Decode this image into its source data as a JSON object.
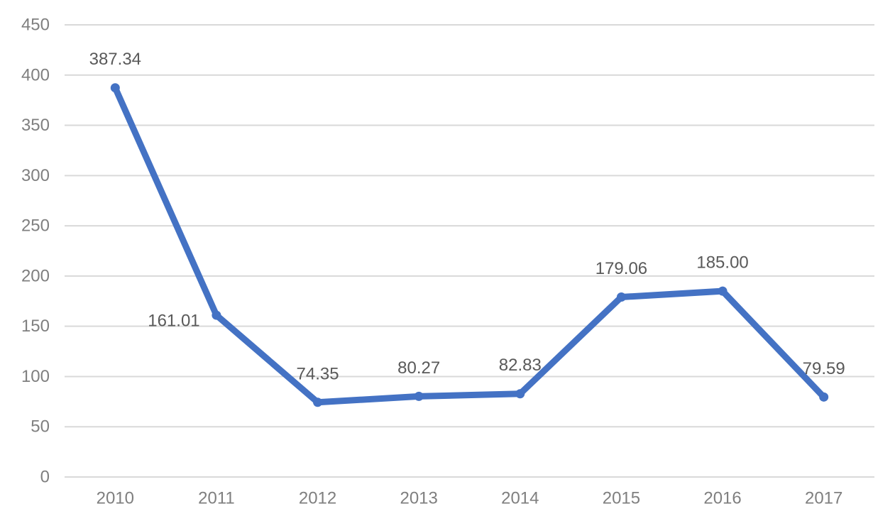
{
  "chart_data": {
    "type": "line",
    "title": "",
    "xlabel": "",
    "ylabel": "",
    "categories": [
      "2010",
      "2011",
      "2012",
      "2013",
      "2014",
      "2015",
      "2016",
      "2017"
    ],
    "series": [
      {
        "values": [
          387.34,
          161.01,
          74.35,
          80.27,
          82.83,
          179.06,
          185.0,
          79.59
        ],
        "labels": [
          "387.34",
          "161.01",
          "74.35",
          "80.27",
          "82.83",
          "179.06",
          "185.00",
          "79.59"
        ],
        "color": "#4472c4"
      }
    ],
    "ylim": [
      0,
      450
    ],
    "yticks": [
      0,
      50,
      100,
      150,
      200,
      250,
      300,
      350,
      400,
      450
    ],
    "grid": true,
    "legend": "none",
    "colors": {
      "grid": "#d9d9d9",
      "tick_text": "#7f7f7f",
      "label_text": "#595959"
    }
  }
}
